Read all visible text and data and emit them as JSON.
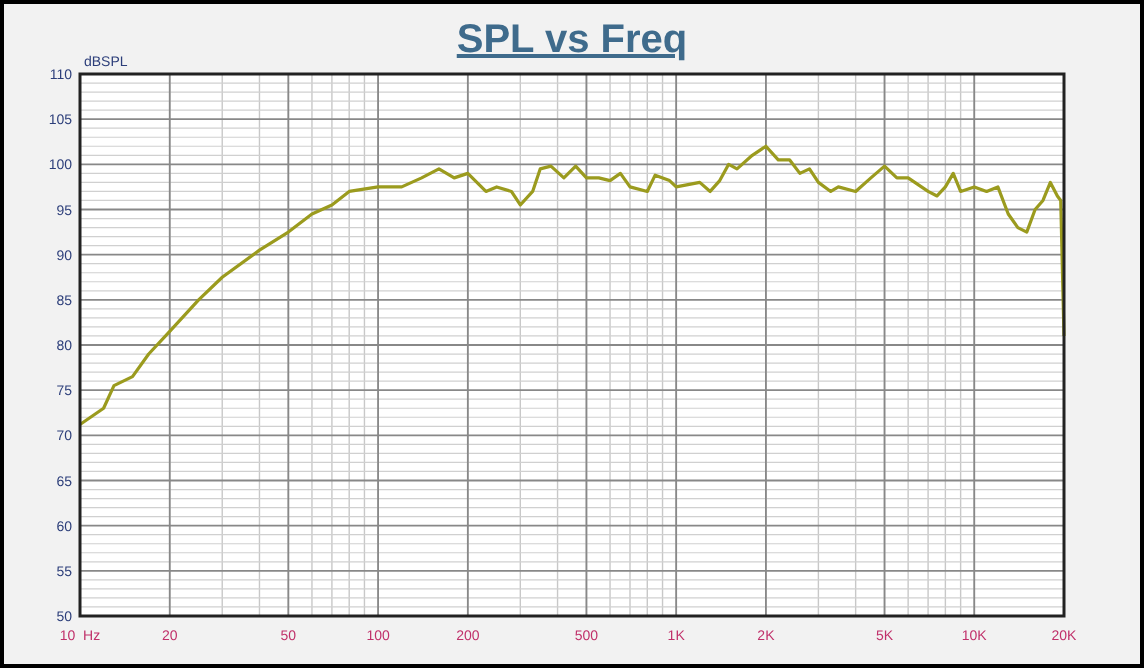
{
  "chart_data": {
    "type": "line",
    "title": "SPL vs Freq",
    "ylabel": "dBSPL",
    "log": "x",
    "grid": true,
    "line_style": "solid",
    "xlim": [
      10,
      20000
    ],
    "ylim": [
      50,
      110
    ],
    "xticks": [
      {
        "value": 10,
        "label": "10  Hz"
      },
      20,
      50,
      100,
      200,
      500,
      {
        "value": 1000,
        "label": "1K"
      },
      {
        "value": 2000,
        "label": "2K"
      },
      {
        "value": 5000,
        "label": "5K"
      },
      {
        "value": 10000,
        "label": "10K"
      },
      {
        "value": 20000,
        "label": "20K"
      }
    ],
    "yticks": [
      50,
      55,
      60,
      65,
      70,
      75,
      80,
      85,
      90,
      95,
      100,
      105,
      110
    ],
    "x": [
      10,
      12,
      13,
      15,
      17,
      20,
      25,
      30,
      40,
      50,
      60,
      70,
      80,
      100,
      120,
      140,
      160,
      180,
      200,
      230,
      250,
      280,
      300,
      330,
      350,
      380,
      420,
      460,
      500,
      550,
      600,
      650,
      700,
      800,
      850,
      950,
      1000,
      1200,
      1300,
      1400,
      1500,
      1600,
      1800,
      2000,
      2200,
      2400,
      2600,
      2800,
      3000,
      3300,
      3500,
      4000,
      4500,
      5000,
      5500,
      6000,
      7000,
      7500,
      8000,
      8500,
      9000,
      10000,
      11000,
      12000,
      13000,
      14000,
      15000,
      16000,
      17000,
      18000,
      19000,
      19500,
      20000
    ],
    "series": [
      {
        "color": "#9b9b1e",
        "values": [
          71.2,
          73,
          75.5,
          76.5,
          79,
          81.5,
          85,
          87.5,
          90.5,
          92.5,
          94.5,
          95.5,
          97,
          97.5,
          97.5,
          98.5,
          99.5,
          98.5,
          99,
          97,
          97.5,
          97,
          95.5,
          97,
          99.5,
          99.8,
          98.5,
          99.8,
          98.5,
          98.5,
          98.2,
          99,
          97.5,
          97,
          98.8,
          98.2,
          97.5,
          98,
          97,
          98.2,
          100,
          99.5,
          101,
          102,
          100.5,
          100.5,
          99,
          99.5,
          98,
          97,
          97.5,
          97,
          98.5,
          99.8,
          98.5,
          98.5,
          97,
          96.5,
          97.5,
          99,
          97,
          97.5,
          97,
          97.5,
          94.5,
          93,
          92.5,
          95,
          96,
          98,
          96.5,
          96,
          81
        ]
      }
    ]
  }
}
